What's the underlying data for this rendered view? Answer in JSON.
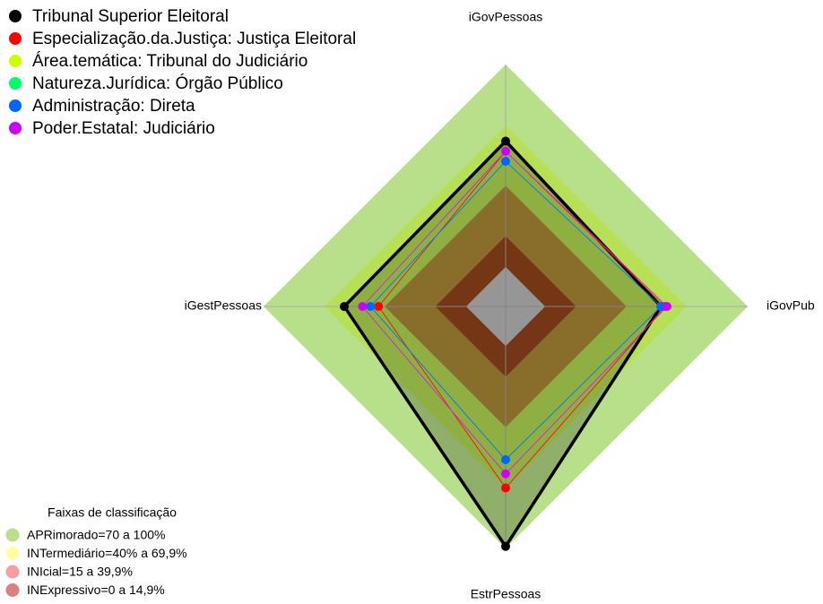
{
  "chart_data": {
    "type": "radar",
    "categories": [
      "iGovPessoas",
      "iGovPub",
      "EstrPessoas",
      "iGestPessoas"
    ],
    "rlim": [
      -20,
      100
    ],
    "series": [
      {
        "name": "Tribunal Superior Eleitoral",
        "color": "#000000",
        "values": [
          62,
          57,
          99,
          60
        ]
      },
      {
        "name": "Especialização.da.Justiça: Justiça Eleitoral",
        "color": "#ff0000",
        "values": [
          57,
          59,
          70,
          43
        ]
      },
      {
        "name": "Área.temática: Tribunal do Judiciário",
        "color": "#ccff00",
        "values": [
          57,
          60,
          63,
          51
        ]
      },
      {
        "name": "Natureza.Jurídica: Órgão Público",
        "color": "#00ff66",
        "values": [
          52,
          57,
          56,
          47
        ]
      },
      {
        "name": "Administração: Direta",
        "color": "#0066ff",
        "values": [
          52,
          57,
          56,
          47
        ]
      },
      {
        "name": "Poder.Estatal: Judiciário",
        "color": "#cc00ff",
        "values": [
          57,
          60,
          63,
          51
        ]
      }
    ],
    "bands_title": "Faixas de classificação",
    "bands": [
      {
        "label": "APRimorado=70 a 100%",
        "color": "#b8e08a",
        "range": [
          70,
          100
        ]
      },
      {
        "label": "INTermediário=40% a 69,9%",
        "color": "#ffffa0",
        "range": [
          40,
          69.9
        ]
      },
      {
        "label": "INIcial=15 a 39,9%",
        "color": "#f4a0a0",
        "range": [
          15,
          39.9
        ]
      },
      {
        "label": "INExpressivo=0 a 14,9%",
        "color": "#d98080",
        "range": [
          0,
          14.9
        ]
      }
    ]
  }
}
